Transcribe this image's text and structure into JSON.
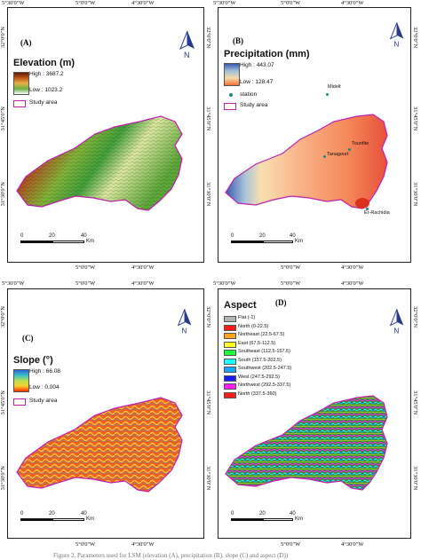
{
  "top_coords": [
    "5°30'0\"W",
    "5°0'0\"W",
    "4°30'0\"W"
  ],
  "bottom_coords": [
    "5°0'0\"W",
    "4°30'0\"W"
  ],
  "lat_coords": [
    "32°0'0\"N",
    "31°45'0\"N",
    "31°30'0\"N"
  ],
  "panel_a": {
    "label": "(A)",
    "title": "Elevation (m)",
    "high": "High : 3687.2",
    "low": "Low : 1023.2",
    "study_area": "Study area",
    "scale": [
      "0",
      "20",
      "40"
    ],
    "scale_unit": "Km",
    "colors": {
      "high": "#5b1a0a",
      "low": "#ffffff"
    }
  },
  "panel_b": {
    "label": "(B)",
    "title": "Precipitation (mm)",
    "high": "High : 443.07",
    "low": "Low : 128.47",
    "station_legend": "station",
    "study_area": "Study area",
    "stations": [
      "Midelt",
      "Tounfite",
      "Tanagourt",
      "Er-Rachidia"
    ],
    "scale": [
      "0",
      "20",
      "40"
    ],
    "scale_unit": "Km",
    "colors": {
      "high": "#3b59b0",
      "low": "#f3703a"
    }
  },
  "panel_c": {
    "label": "(C)",
    "title": "Slope (°)",
    "high": "High : 66.08",
    "low": "Low : 0.004",
    "study_area": "Study area",
    "scale": [
      "0",
      "20",
      "40"
    ],
    "scale_unit": "Km",
    "colors": {
      "high": "#2e63d8",
      "low": "#ff2a00"
    }
  },
  "panel_d": {
    "label": "(D)",
    "title": "Aspect",
    "classes": [
      {
        "label": "Flat (-1)",
        "color": "#b4b4b4"
      },
      {
        "label": "North (0-22.5)",
        "color": "#ff1a1a"
      },
      {
        "label": "Northeast (22.5-67.5)",
        "color": "#ffa51a"
      },
      {
        "label": "East (67.5-112.5)",
        "color": "#ffff1a"
      },
      {
        "label": "Southeast (112.5-157.5)",
        "color": "#1aff3a"
      },
      {
        "label": "South (157.5-202.5)",
        "color": "#1affff"
      },
      {
        "label": "Southwest (202.5-247.5)",
        "color": "#1aa5ff"
      },
      {
        "label": "West (247.5-292.5)",
        "color": "#1a1aff"
      },
      {
        "label": "Northwest (292.5-337.5)",
        "color": "#ff1aff"
      },
      {
        "label": "North (337.5-360)",
        "color": "#ff1a1a"
      }
    ],
    "scale": [
      "0",
      "20",
      "40"
    ],
    "scale_unit": "Km"
  },
  "north_label": "N",
  "caption": "Figure 2. Parameters used for LSM (elevation (A), precipitation (B), slope (C) and aspect (D))"
}
